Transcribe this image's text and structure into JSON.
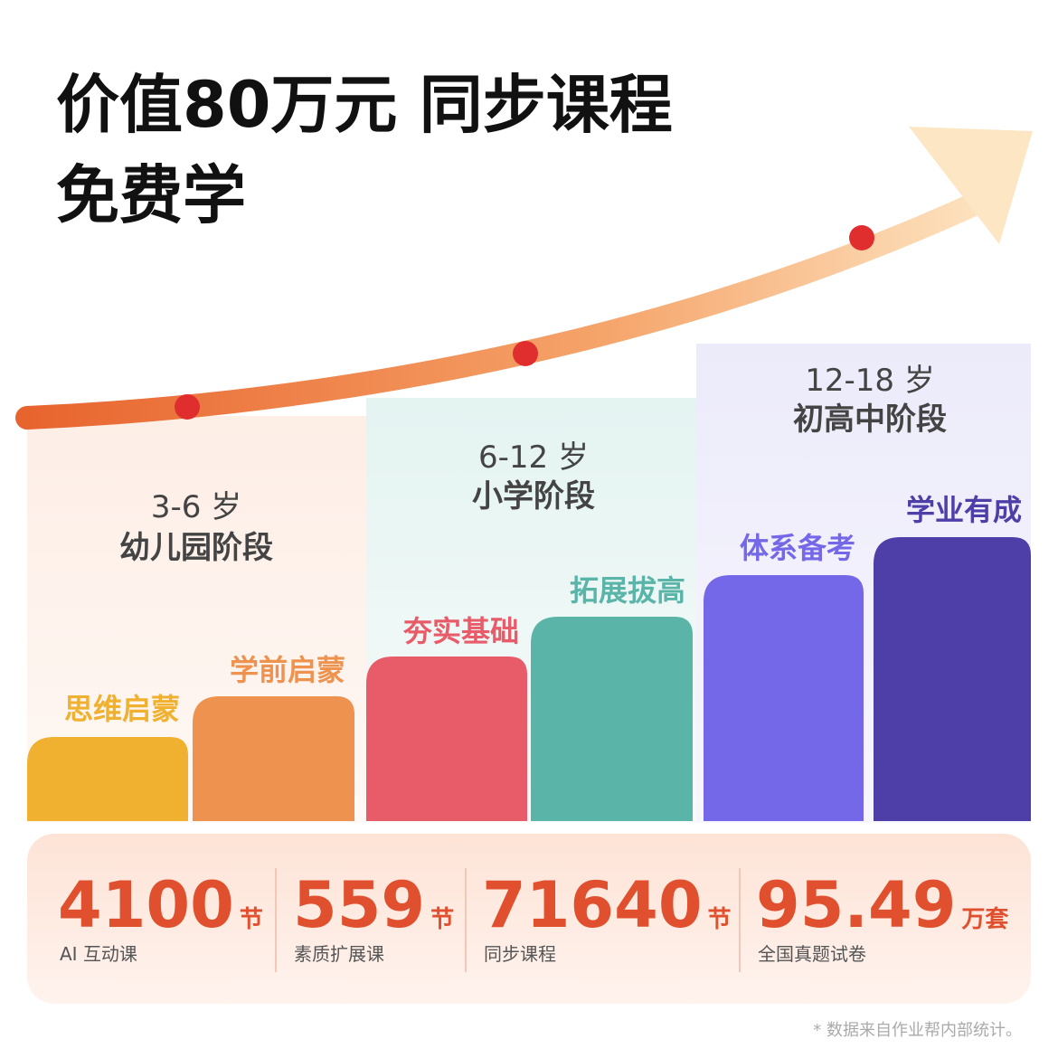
{
  "header": {
    "title_lines": [
      "价值80万元 同步课程",
      "免费学"
    ]
  },
  "stages": [
    {
      "age": "3-6 岁",
      "name": "幼儿园阶段",
      "steps": [
        "思维启蒙",
        "学前启蒙"
      ]
    },
    {
      "age": "6-12 岁",
      "name": "小学阶段",
      "steps": [
        "夯实基础",
        "拓展拔高"
      ]
    },
    {
      "age": "12-18 岁",
      "name": "初高中阶段",
      "steps": [
        "体系备考",
        "学业有成"
      ]
    }
  ],
  "stats": [
    {
      "value": 4100,
      "unit": "节",
      "label": "AI 互动课"
    },
    {
      "value": 559,
      "unit": "节",
      "label": "素质扩展课"
    },
    {
      "value": 71640,
      "unit": "节",
      "label": "同步课程"
    },
    {
      "value": 95.49,
      "unit": "万套",
      "label": "全国真题试卷"
    }
  ],
  "footnote": "* 数据来自作业帮内部统计。"
}
